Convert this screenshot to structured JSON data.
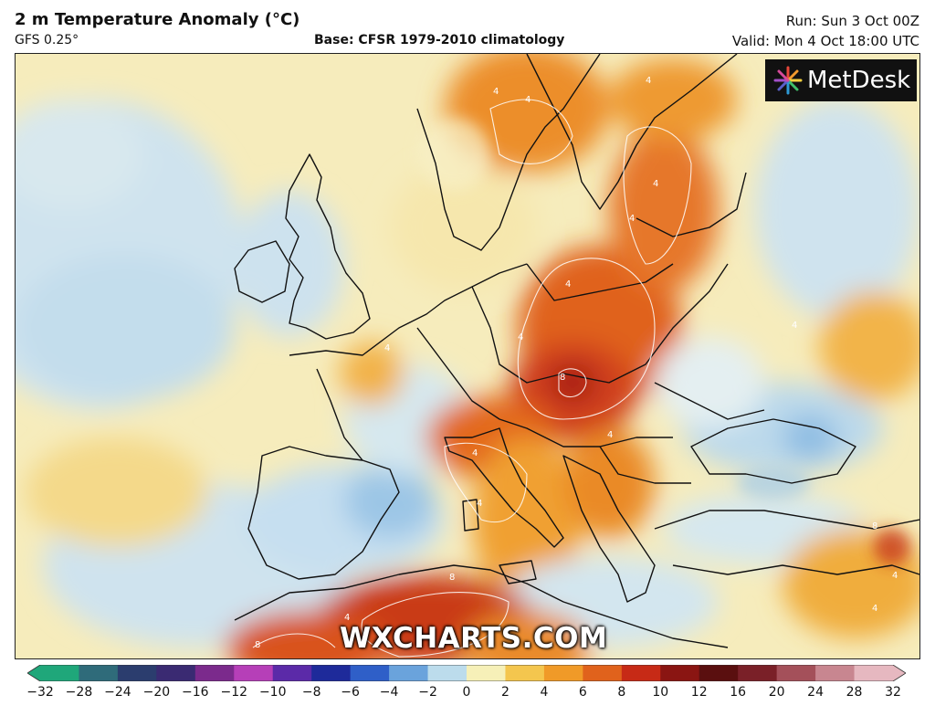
{
  "header": {
    "title": "2 m Temperature Anomaly (°C)",
    "model": "GFS 0.25°",
    "base": "Base: CFSR 1979-2010 climatology",
    "run": "Run: Sun 3 Oct 00Z",
    "valid": "Valid: Mon 4 Oct 18:00 UTC"
  },
  "logo": {
    "text": "MetDesk"
  },
  "watermark": {
    "text": "WXCHARTS.COM"
  },
  "map": {
    "contour_labels": [
      "4",
      "4",
      "4",
      "4",
      "4",
      "4",
      "4",
      "4",
      "8",
      "8",
      "8",
      "4",
      "4",
      "4",
      "4",
      "8",
      "4",
      "4",
      "4"
    ]
  },
  "colorbar": {
    "ticks": [
      "−32",
      "−28",
      "−24",
      "−20",
      "−16",
      "−12",
      "−10",
      "−8",
      "−6",
      "−4",
      "−2",
      "0",
      "2",
      "4",
      "6",
      "8",
      "10",
      "12",
      "16",
      "20",
      "24",
      "28",
      "32"
    ],
    "colors": [
      "#1fa77a",
      "#2f6b7a",
      "#2b3d6e",
      "#3a2a72",
      "#7b2a8c",
      "#b63fb8",
      "#5b2aa8",
      "#1e2a9a",
      "#2f5fc8",
      "#6aa3dc",
      "#bcdcec",
      "#f6f0b8",
      "#f4c64e",
      "#f09a28",
      "#e0621c",
      "#c72a16",
      "#8a1512",
      "#5a0f0f",
      "#7a2028",
      "#a4505a",
      "#c88690",
      "#e6b8c0"
    ]
  },
  "colors": {
    "cold_light": "#cfe4ee",
    "neutral": "#f7efc3",
    "warm": "#f3b84a",
    "hot": "#d9531c",
    "very_hot": "#b3241a"
  }
}
